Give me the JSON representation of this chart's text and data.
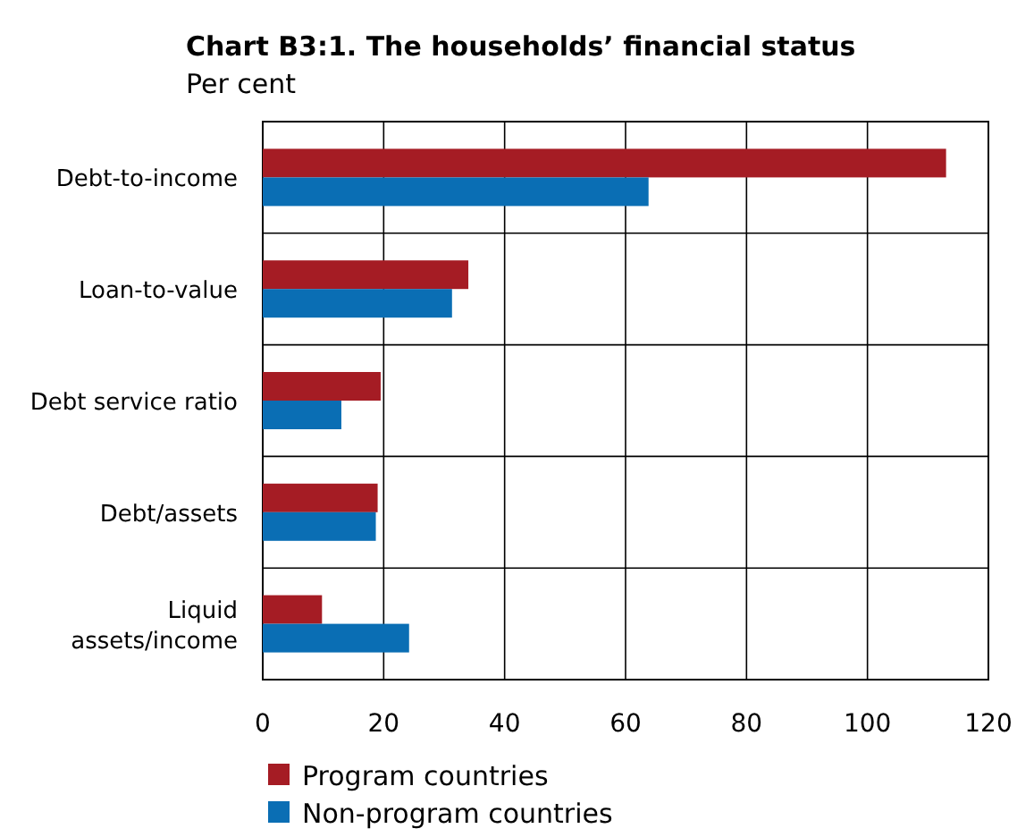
{
  "chart_data": {
    "type": "bar",
    "orientation": "horizontal",
    "title": "Chart B3:1. The households’ financial status",
    "subtitle": "Per cent",
    "categories": [
      "Debt-to-income",
      "Loan-to-value",
      "Debt service ratio",
      "Debt/assets",
      "Liquid\nassets/income"
    ],
    "series": [
      {
        "name": "Program countries",
        "color": "#a51c24",
        "values": [
          113,
          34,
          19.5,
          19,
          9.8
        ]
      },
      {
        "name": "Non-program countries",
        "color": "#0a6eb4",
        "values": [
          63.8,
          31.3,
          13,
          18.7,
          24.2
        ]
      }
    ],
    "xlim": [
      0,
      120
    ],
    "xticks": [
      0,
      20,
      40,
      60,
      80,
      100,
      120
    ],
    "grid": "x",
    "legend": "bottom"
  }
}
